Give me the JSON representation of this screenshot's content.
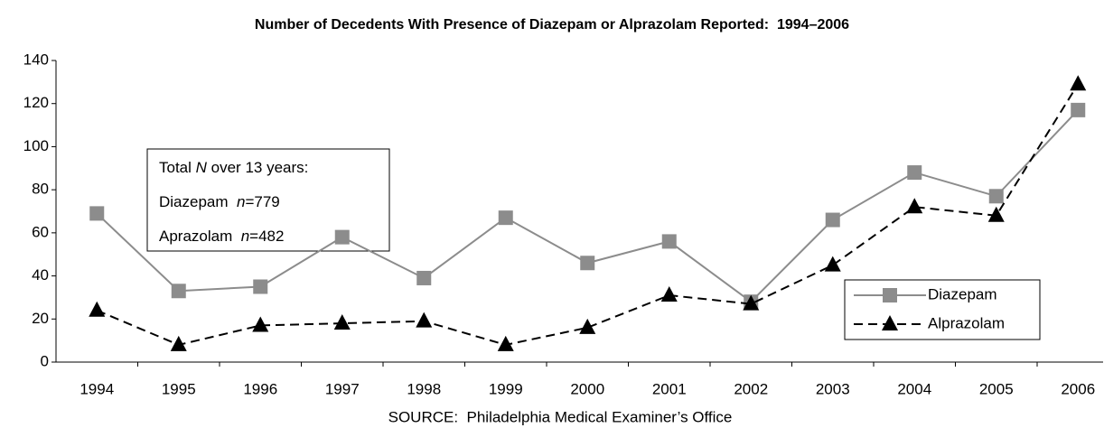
{
  "chart_data": {
    "type": "line",
    "title": "Number of Decedents With Presence of Diazepam or Alprazolam Reported:  1994–2006",
    "source": "SOURCE:  Philadelphia Medical Examiner’s Office",
    "categories": [
      "1994",
      "1995",
      "1996",
      "1997",
      "1998",
      "1999",
      "2000",
      "2001",
      "2002",
      "2003",
      "2004",
      "2005",
      "2006"
    ],
    "series": [
      {
        "name": "Diazepam",
        "color": "#8c8c8c",
        "marker": "square",
        "dash": "solid",
        "values": [
          69,
          33,
          35,
          58,
          39,
          67,
          46,
          56,
          28,
          66,
          88,
          77,
          117
        ]
      },
      {
        "name": "Alprazolam",
        "color": "#000000",
        "marker": "triangle",
        "dash": "dashed",
        "values": [
          24,
          8,
          17,
          18,
          19,
          8,
          16,
          31,
          27,
          45,
          72,
          68,
          129
        ]
      }
    ],
    "annotation": [
      [
        "Total ",
        "N",
        " over 13 years:"
      ],
      [
        "Diazepam  ",
        "n",
        "=779"
      ],
      [
        "Aprazolam  ",
        "n",
        "=482"
      ]
    ],
    "ylim": [
      0,
      140
    ],
    "yticks": [
      0,
      20,
      40,
      60,
      80,
      100,
      120,
      140
    ],
    "legend": "lower right"
  }
}
